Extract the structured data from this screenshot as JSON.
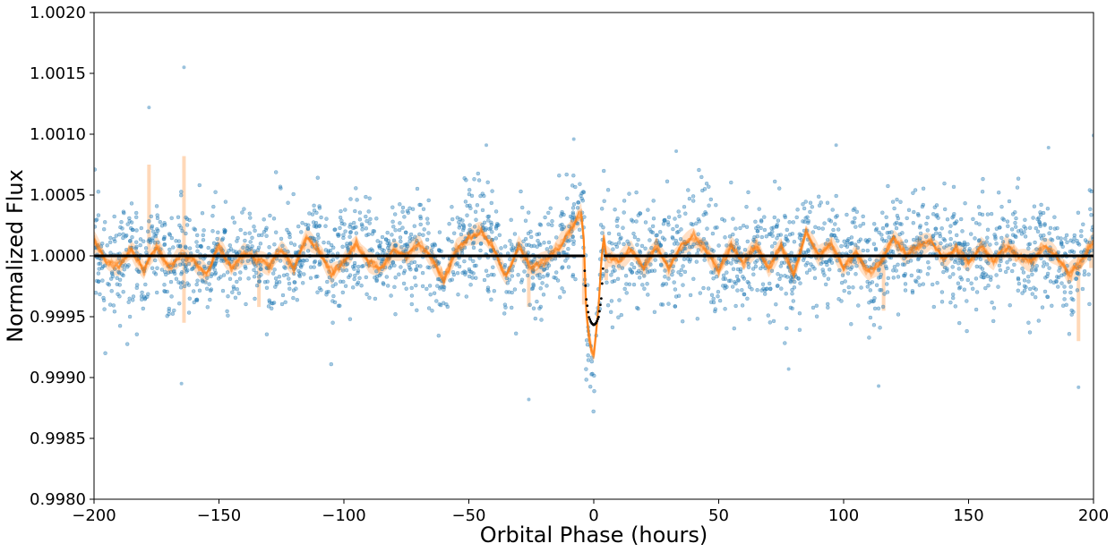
{
  "chart_data": {
    "type": "scatter",
    "title": "",
    "xlabel": "Orbital Phase (hours)",
    "ylabel": "Normalized Flux",
    "xlim": [
      -200,
      200
    ],
    "ylim": [
      0.998,
      1.002
    ],
    "xticks": [
      -200,
      -150,
      -100,
      -50,
      0,
      50,
      100,
      150,
      200
    ],
    "xtick_labels": [
      "−200",
      "−150",
      "−100",
      "−50",
      "0",
      "50",
      "100",
      "150",
      "200"
    ],
    "yticks": [
      0.998,
      0.9985,
      0.999,
      0.9995,
      1.0,
      1.0005,
      1.001,
      1.0015,
      1.002
    ],
    "ytick_labels": [
      "0.9980",
      "0.9985",
      "0.9990",
      "0.9995",
      "1.0000",
      "1.0005",
      "1.0010",
      "1.0015",
      "1.0020"
    ],
    "grid": false,
    "legend": "none",
    "colors": {
      "data_points": "#1f77b4",
      "gp_model": "#ff7f0e",
      "gp_band": "#ffd8b8",
      "transit_model": "#000000"
    },
    "series": [
      {
        "type": "scatter",
        "description_role": "observed_flux",
        "noise_sigma": 0.00022,
        "count": 2600,
        "outliers": [
          {
            "x": -178,
            "y": 1.00122
          },
          {
            "x": -164,
            "y": 1.00155
          },
          {
            "x": -165,
            "y": 0.99895
          },
          {
            "x": -26,
            "y": 0.99882
          },
          {
            "x": -8,
            "y": 1.00096
          },
          {
            "x": 33,
            "y": 1.00086
          },
          {
            "x": 97,
            "y": 1.00091
          },
          {
            "x": 78,
            "y": 0.99907
          },
          {
            "x": 114,
            "y": 0.99893
          },
          {
            "x": 194,
            "y": 0.99892
          },
          {
            "x": 200,
            "y": 1.00099
          },
          {
            "x": 182,
            "y": 1.00089
          },
          {
            "x": -43,
            "y": 1.00091
          }
        ]
      },
      {
        "type": "line",
        "description_role": "gp_model",
        "x": [
          -200,
          -195,
          -190,
          -185,
          -180,
          -175,
          -170,
          -165,
          -160,
          -155,
          -150,
          -145,
          -140,
          -135,
          -130,
          -125,
          -120,
          -115,
          -110,
          -105,
          -100,
          -95,
          -90,
          -85,
          -80,
          -75,
          -70,
          -65,
          -60,
          -55,
          -50,
          -45,
          -40,
          -35,
          -30,
          -25,
          -20,
          -15,
          -10,
          -5,
          -3,
          0,
          3,
          5,
          10,
          15,
          20,
          25,
          30,
          35,
          40,
          45,
          50,
          55,
          60,
          65,
          70,
          75,
          80,
          85,
          90,
          95,
          100,
          105,
          110,
          115,
          120,
          125,
          130,
          135,
          140,
          145,
          150,
          155,
          160,
          165,
          170,
          175,
          180,
          185,
          190,
          195,
          200
        ],
        "y": [
          1.00012,
          0.99995,
          0.99992,
          1.00005,
          0.99988,
          1.00008,
          0.9999,
          1.00002,
          0.99995,
          0.99985,
          1.00008,
          0.9999,
          1.00002,
          0.99998,
          0.99992,
          1.00005,
          0.9999,
          1.00015,
          1.00005,
          0.99985,
          0.99995,
          1.0001,
          0.99995,
          0.9999,
          1.00005,
          1.0,
          1.0001,
          0.99998,
          0.9998,
          1.00005,
          1.00015,
          1.0002,
          1.00005,
          0.99982,
          1.00008,
          0.9999,
          0.99995,
          1.00005,
          1.0002,
          1.00035,
          0.9999,
          0.99975,
          1.0003,
          1.0,
          0.99995,
          1.00005,
          0.9999,
          1.00008,
          0.9999,
          1.00008,
          1.00015,
          1.00005,
          0.99988,
          1.00008,
          0.99995,
          1.00008,
          0.9999,
          1.00008,
          0.99985,
          1.0002,
          1.0,
          1.0001,
          0.9999,
          1.00002,
          0.99985,
          0.99995,
          1.00015,
          1.0,
          1.00008,
          1.00012,
          0.99998,
          1.00005,
          0.99995,
          1.00008,
          0.99995,
          1.00008,
          1.0,
          0.99995,
          1.00008,
          1.0,
          0.99985,
          0.99995,
          1.00012
        ]
      },
      {
        "type": "line",
        "description_role": "transit_model",
        "x": [
          -200,
          -4,
          -3,
          -2,
          -1,
          0,
          1,
          2,
          3,
          4,
          200
        ],
        "y": [
          1.0,
          1.0,
          0.99965,
          0.9995,
          0.99945,
          0.99943,
          0.99945,
          0.9995,
          0.99965,
          1.0,
          1.0
        ]
      }
    ]
  }
}
